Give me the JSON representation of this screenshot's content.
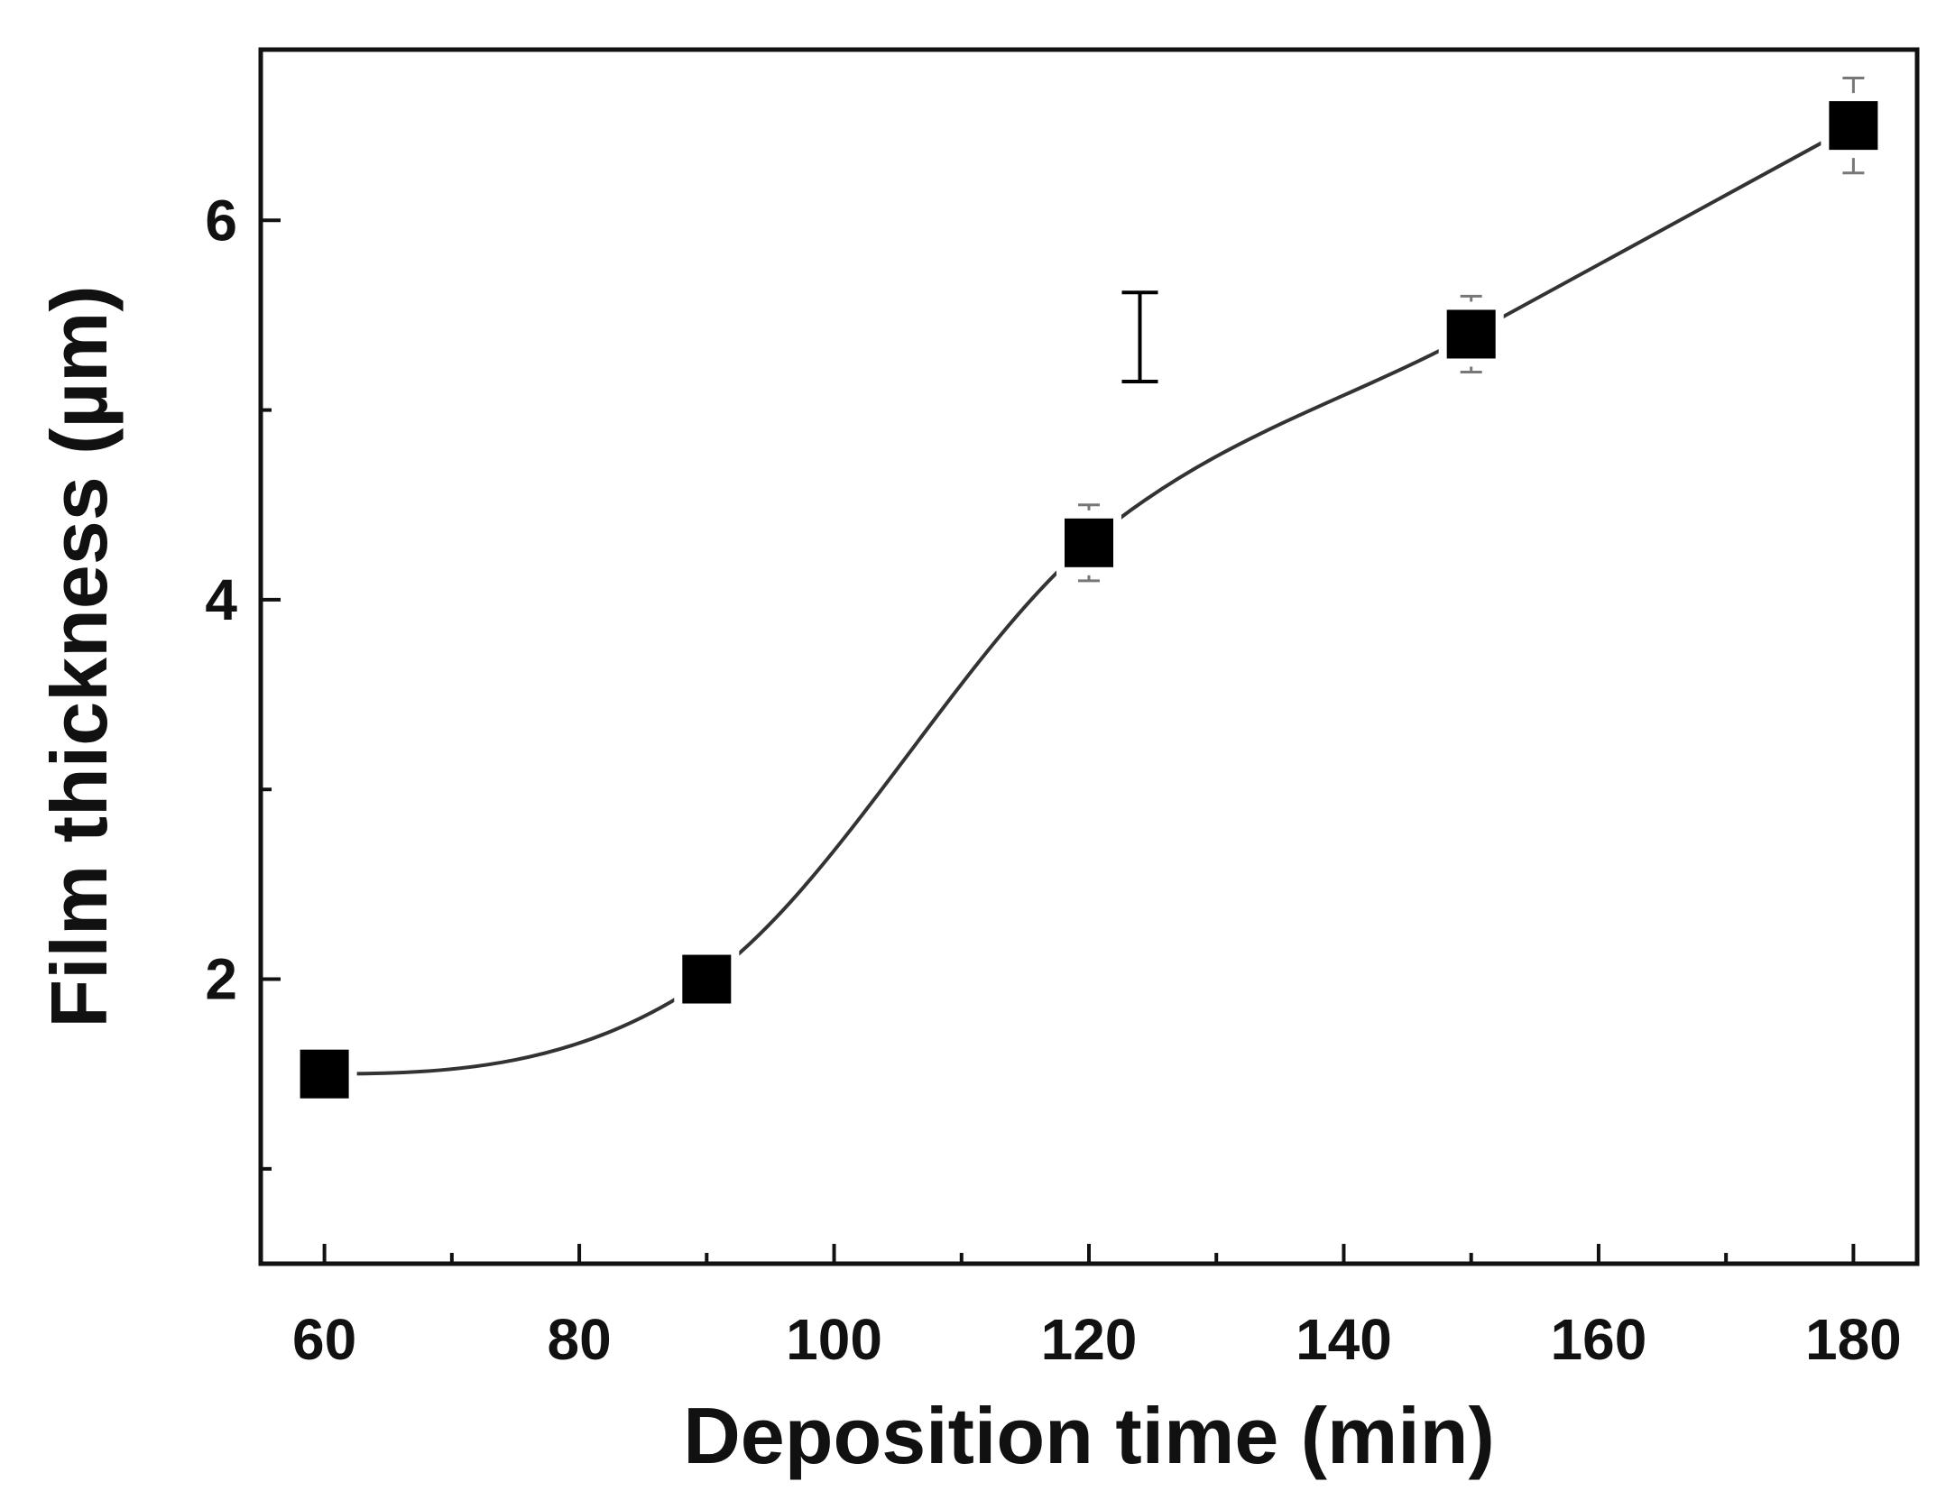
{
  "chart_data": {
    "type": "scatter",
    "title": "",
    "xlabel": "Deposition time (min)",
    "ylabel": "Film thickness (µm)",
    "xlim": [
      55,
      185
    ],
    "ylim": [
      0.5,
      6.9
    ],
    "x_ticks": [
      60,
      80,
      100,
      120,
      140,
      160,
      180
    ],
    "x_minor_ticks": [
      70,
      90,
      110,
      130,
      150,
      170
    ],
    "y_ticks": [
      2,
      4,
      6
    ],
    "y_minor_ticks": [
      1,
      3,
      5
    ],
    "grid": false,
    "legend": "none",
    "series": [
      {
        "marker": "square",
        "color": "#000000",
        "x": [
          60,
          90,
          120,
          150,
          180
        ],
        "y": [
          1.5,
          2.0,
          4.3,
          5.4,
          6.5
        ],
        "y_error": [
          0.05,
          0.05,
          0.2,
          0.2,
          0.25
        ],
        "fit_curve": "smooth"
      }
    ],
    "annotations": [
      {
        "type": "error-bar-scale",
        "x": 124,
        "y_low": 5.15,
        "y_high": 5.62
      }
    ]
  }
}
